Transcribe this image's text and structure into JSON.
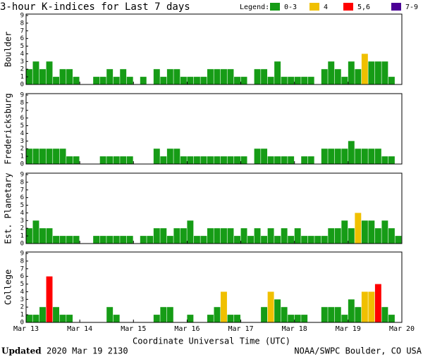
{
  "chart_data": {
    "type": "bar",
    "title": "3-hour K-indices for Last 7 days",
    "legend_title": "Legend:",
    "legend": [
      {
        "label": "0-3",
        "color": "#169c16"
      },
      {
        "label": "4",
        "color": "#f0c000"
      },
      {
        "label": "5,6",
        "color": "#ff0000"
      },
      {
        "label": "7-9",
        "color": "#4b0096"
      }
    ],
    "xticks": [
      "Mar 13",
      "Mar 14",
      "Mar 15",
      "Mar 16",
      "Mar 17",
      "Mar 18",
      "Mar 19",
      "Mar 20"
    ],
    "xlabel": "Coordinate Universal Time (UTC)",
    "ylim": [
      0,
      9
    ],
    "yticks": [
      0,
      1,
      2,
      3,
      4,
      5,
      6,
      7,
      8,
      9
    ],
    "panels": [
      {
        "name": "Boulder",
        "values": [
          2,
          3,
          2,
          3,
          1,
          2,
          2,
          1,
          0,
          0,
          1,
          1,
          2,
          1,
          2,
          1,
          0,
          1,
          0,
          2,
          1,
          2,
          2,
          1,
          1,
          1,
          1,
          2,
          2,
          2,
          2,
          1,
          1,
          0,
          2,
          2,
          1,
          3,
          1,
          1,
          1,
          1,
          1,
          0,
          2,
          3,
          2,
          1,
          3,
          2,
          4,
          3,
          3,
          3,
          1,
          0
        ]
      },
      {
        "name": "Fredericksburg",
        "values": [
          2,
          2,
          2,
          2,
          2,
          2,
          1,
          1,
          0,
          0,
          0,
          1,
          1,
          1,
          1,
          1,
          0,
          0,
          0,
          2,
          1,
          2,
          2,
          1,
          1,
          1,
          1,
          1,
          1,
          1,
          1,
          1,
          1,
          0,
          2,
          2,
          1,
          1,
          1,
          1,
          0,
          1,
          1,
          0,
          2,
          2,
          2,
          2,
          3,
          2,
          2,
          2,
          2,
          1,
          1,
          0
        ]
      },
      {
        "name": "Est. Planetary",
        "values": [
          2,
          3,
          2,
          2,
          1,
          1,
          1,
          1,
          0,
          0,
          1,
          1,
          1,
          1,
          1,
          1,
          0,
          1,
          1,
          2,
          2,
          1,
          2,
          2,
          3,
          1,
          1,
          2,
          2,
          2,
          2,
          1,
          2,
          1,
          2,
          1,
          2,
          1,
          2,
          1,
          2,
          1,
          1,
          1,
          1,
          2,
          2,
          3,
          2,
          4,
          3,
          3,
          2,
          3,
          2,
          1
        ]
      },
      {
        "name": "College",
        "values": [
          1,
          1,
          2,
          6,
          2,
          1,
          1,
          0,
          0,
          0,
          0,
          0,
          2,
          1,
          0,
          0,
          0,
          0,
          0,
          1,
          2,
          2,
          0,
          0,
          1,
          0,
          0,
          1,
          2,
          4,
          1,
          1,
          0,
          0,
          0,
          2,
          4,
          3,
          2,
          1,
          1,
          1,
          0,
          0,
          2,
          2,
          2,
          1,
          3,
          2,
          4,
          4,
          5,
          2,
          1,
          0
        ]
      }
    ],
    "footer_label": "Updated",
    "footer_date": "2020 Mar 19 2130",
    "footer_right": "NOAA/SWPC Boulder, CO USA"
  }
}
